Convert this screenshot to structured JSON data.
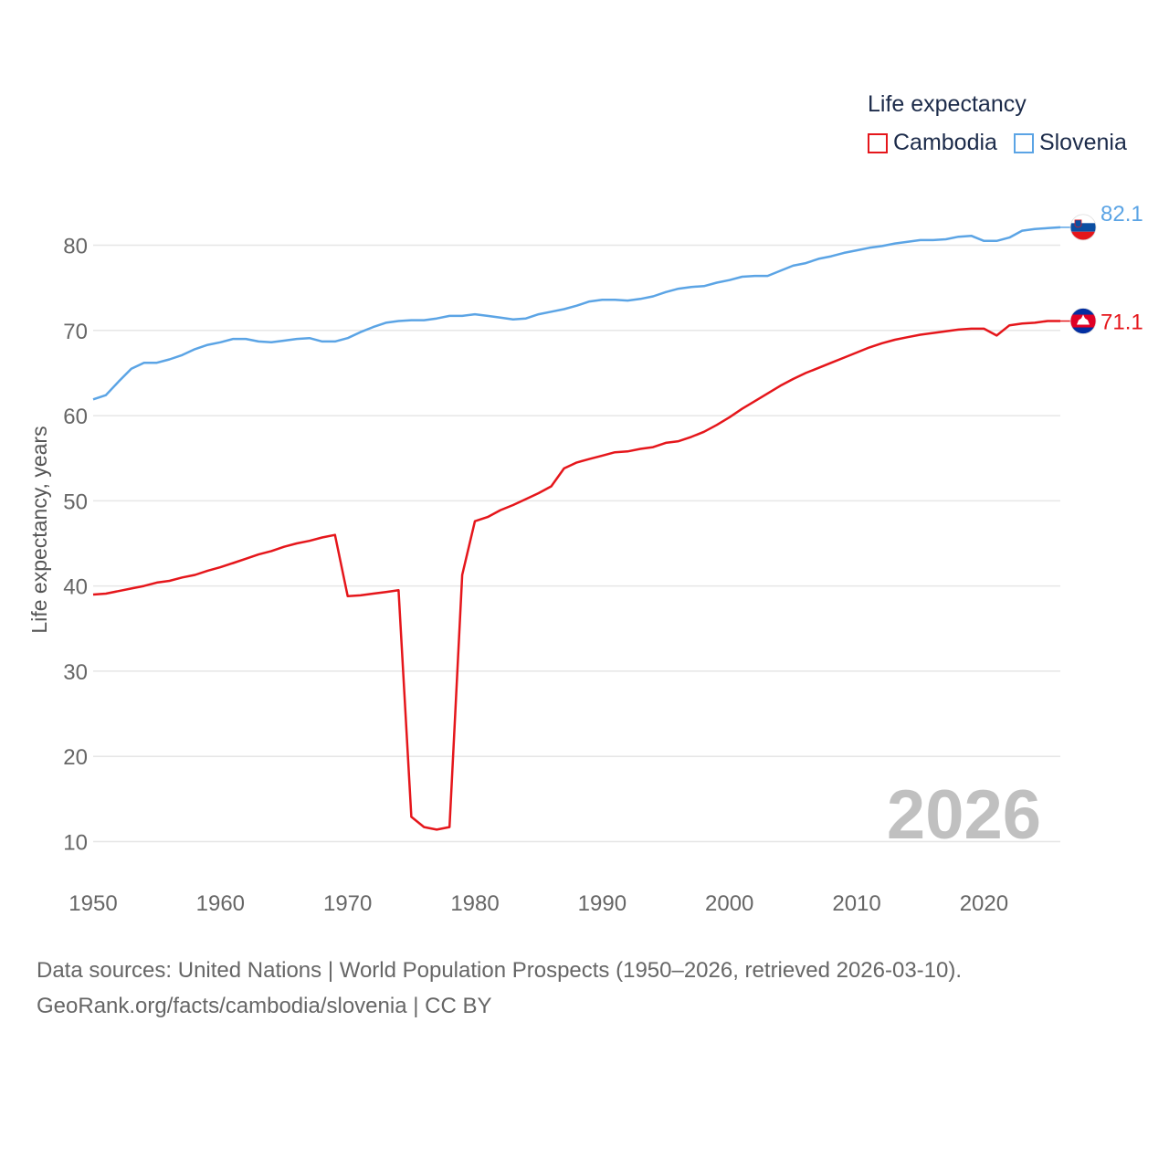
{
  "legend": {
    "title": "Life expectancy"
  },
  "chart_data": {
    "type": "line",
    "title": "",
    "xlabel": "",
    "ylabel": "Life expectancy, years",
    "xlim": [
      1950,
      2026
    ],
    "ylim": [
      5,
      88
    ],
    "yticks": [
      10,
      20,
      30,
      40,
      50,
      60,
      70,
      80
    ],
    "xticks": [
      1950,
      1960,
      1970,
      1980,
      1990,
      2000,
      2010,
      2020
    ],
    "grid": true,
    "legend_position": "top-right",
    "year_watermark": "2026",
    "x": [
      1950,
      1951,
      1952,
      1953,
      1954,
      1955,
      1956,
      1957,
      1958,
      1959,
      1960,
      1961,
      1962,
      1963,
      1964,
      1965,
      1966,
      1967,
      1968,
      1969,
      1970,
      1971,
      1972,
      1973,
      1974,
      1975,
      1976,
      1977,
      1978,
      1979,
      1980,
      1981,
      1982,
      1983,
      1984,
      1985,
      1986,
      1987,
      1988,
      1989,
      1990,
      1991,
      1992,
      1993,
      1994,
      1995,
      1996,
      1997,
      1998,
      1999,
      2000,
      2001,
      2002,
      2003,
      2004,
      2005,
      2006,
      2007,
      2008,
      2009,
      2010,
      2011,
      2012,
      2013,
      2014,
      2015,
      2016,
      2017,
      2018,
      2019,
      2020,
      2021,
      2022,
      2023,
      2024,
      2025,
      2026
    ],
    "series": [
      {
        "name": "Cambodia",
        "color": "#e5161b",
        "end_label": "71.1",
        "flag": "cambodia-flag-icon",
        "values": [
          39.0,
          39.1,
          39.4,
          39.7,
          40.0,
          40.4,
          40.6,
          41.0,
          41.3,
          41.8,
          42.2,
          42.7,
          43.2,
          43.7,
          44.1,
          44.6,
          45.0,
          45.3,
          45.7,
          46.0,
          38.8,
          38.9,
          39.1,
          39.3,
          39.5,
          12.9,
          11.7,
          11.4,
          11.7,
          41.3,
          47.6,
          48.1,
          48.9,
          49.5,
          50.2,
          50.9,
          51.7,
          53.8,
          54.5,
          54.9,
          55.3,
          55.7,
          55.8,
          56.1,
          56.3,
          56.8,
          57.0,
          57.5,
          58.1,
          58.9,
          59.8,
          60.8,
          61.7,
          62.6,
          63.5,
          64.3,
          65.0,
          65.6,
          66.2,
          66.8,
          67.4,
          68.0,
          68.5,
          68.9,
          69.2,
          69.5,
          69.7,
          69.9,
          70.1,
          70.2,
          70.2,
          69.4,
          70.6,
          70.8,
          70.9,
          71.1,
          71.1
        ]
      },
      {
        "name": "Slovenia",
        "color": "#5ba4e5",
        "end_label": "82.1",
        "flag": "slovenia-flag-icon",
        "values": [
          61.9,
          62.4,
          64.0,
          65.5,
          66.2,
          66.2,
          66.6,
          67.1,
          67.8,
          68.3,
          68.6,
          69.0,
          69.0,
          68.7,
          68.6,
          68.8,
          69.0,
          69.1,
          68.7,
          68.7,
          69.1,
          69.8,
          70.4,
          70.9,
          71.1,
          71.2,
          71.2,
          71.4,
          71.7,
          71.7,
          71.9,
          71.7,
          71.5,
          71.3,
          71.4,
          71.9,
          72.2,
          72.5,
          72.9,
          73.4,
          73.6,
          73.6,
          73.5,
          73.7,
          74.0,
          74.5,
          74.9,
          75.1,
          75.2,
          75.6,
          75.9,
          76.3,
          76.4,
          76.4,
          77.0,
          77.6,
          77.9,
          78.4,
          78.7,
          79.1,
          79.4,
          79.7,
          79.9,
          80.2,
          80.4,
          80.6,
          80.6,
          80.7,
          81.0,
          81.1,
          80.5,
          80.5,
          80.9,
          81.7,
          81.9,
          82.0,
          82.1
        ]
      }
    ]
  },
  "footer": {
    "line1": "Data sources: United Nations | World Population Prospects (1950–2026, retrieved 2026-03-10).",
    "line2": "GeoRank.org/facts/cambodia/slovenia | CC BY"
  }
}
